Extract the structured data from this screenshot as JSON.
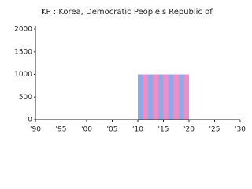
{
  "chart_data": {
    "type": "bar",
    "title": "KP : Korea, Democratic People's Republic of",
    "x": [
      2010,
      2011,
      2012,
      2013,
      2014,
      2015,
      2016,
      2017,
      2018,
      2019
    ],
    "values": [
      1000,
      1000,
      1000,
      1000,
      1000,
      1000,
      1000,
      1000,
      1000,
      1000
    ],
    "colors": [
      "#8faae6",
      "#f08cc8"
    ],
    "xlim": [
      1990,
      2030
    ],
    "xticks": [
      {
        "value": 1990,
        "label": "'90"
      },
      {
        "value": 1995,
        "label": "'95"
      },
      {
        "value": 2000,
        "label": "'00"
      },
      {
        "value": 2005,
        "label": "'05"
      },
      {
        "value": 2010,
        "label": "'10"
      },
      {
        "value": 2015,
        "label": "'15"
      },
      {
        "value": 2020,
        "label": "'20"
      },
      {
        "value": 2025,
        "label": "'25"
      },
      {
        "value": 2030,
        "label": "'30"
      }
    ],
    "ylim": [
      0,
      2000
    ],
    "yticks": [
      0,
      500,
      1000,
      1500,
      2000
    ]
  }
}
